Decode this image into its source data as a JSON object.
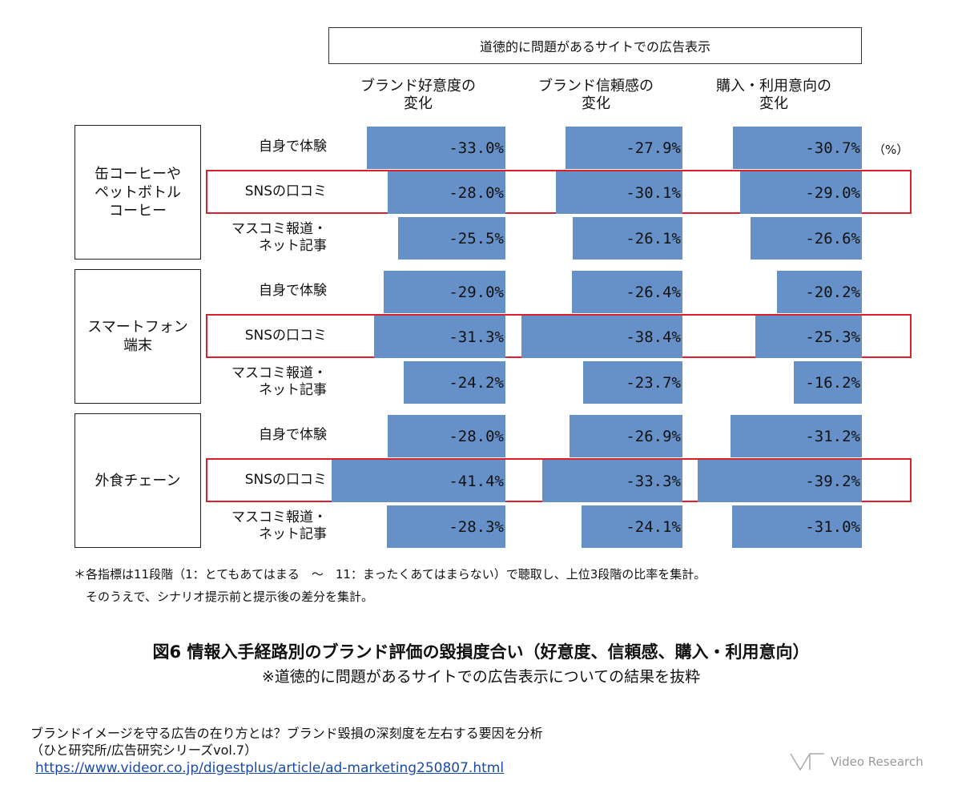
{
  "chart_data": {
    "type": "bar",
    "title": "図6 情報入手経路別のブランド評価の毀損度合い（好意度、信頼感、購入・利用意向）",
    "subtitle": "※道徳的に問題があるサイトでの広告表示についての結果を抜粋",
    "header_banner": "道徳的に問題があるサイトでの広告表示",
    "unit": "（%）",
    "columns": [
      "ブランド好意度の\n変化",
      "ブランド信頼感の\n変化",
      "購入・利用意向の\n変化"
    ],
    "groups": [
      {
        "name": "缶コーヒーや\nペットボトル\nコーヒー",
        "rows": [
          {
            "label": "自身で体験",
            "values": [
              -33.0,
              -27.9,
              -30.7
            ],
            "highlight": false
          },
          {
            "label": "SNSの口コミ",
            "values": [
              -28.0,
              -30.1,
              -29.0
            ],
            "highlight": true
          },
          {
            "label": "マスコミ報道・\nネット記事",
            "values": [
              -25.5,
              -26.1,
              -26.6
            ],
            "highlight": false
          }
        ]
      },
      {
        "name": "スマートフォン\n端末",
        "rows": [
          {
            "label": "自身で体験",
            "values": [
              -29.0,
              -26.4,
              -20.2
            ],
            "highlight": false
          },
          {
            "label": "SNSの口コミ",
            "values": [
              -31.3,
              -38.4,
              -25.3
            ],
            "highlight": true
          },
          {
            "label": "マスコミ報道・\nネット記事",
            "values": [
              -24.2,
              -23.7,
              -16.2
            ],
            "highlight": false
          }
        ]
      },
      {
        "name": "外食チェーン",
        "rows": [
          {
            "label": "自身で体験",
            "values": [
              -28.0,
              -26.9,
              -31.2
            ],
            "highlight": false
          },
          {
            "label": "SNSの口コミ",
            "values": [
              -41.4,
              -33.3,
              -39.2
            ],
            "highlight": true
          },
          {
            "label": "マスコミ報道・\nネット記事",
            "values": [
              -28.3,
              -24.1,
              -31.0
            ],
            "highlight": false
          }
        ]
      }
    ],
    "xlim": [
      -45,
      0
    ]
  },
  "colors": {
    "bar": "#6691c8",
    "highlight": "#d9202b"
  },
  "footnote": [
    "＊各指標は11段階（1：とてもあてはまる　～　11：まったくあてはまらない）で聴取し、上位3段階の比率を集計。",
    "　そのうえで、シナリオ提示前と提示後の差分を集計。"
  ],
  "source": {
    "line1": "ブランドイメージを守る広告の在り方とは？ブランド毀損の深刻度を左右する要因を分析",
    "line2": "（ひと研究所/広告研究シリーズvol.7）",
    "url": "https://www.videor.co.jp/digestplus/article/ad-marketing250807.html"
  },
  "logo_text": "Video Research"
}
